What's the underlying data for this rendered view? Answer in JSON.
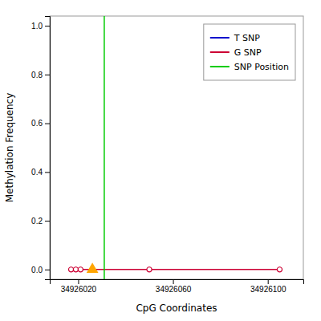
{
  "chart_data": {
    "type": "line",
    "xlabel": "CpG Coordinates",
    "ylabel": "Methylation Frequency",
    "xlim": [
      34926008,
      34926115
    ],
    "ylim": [
      -0.04,
      1.04
    ],
    "xticks": [
      34926020,
      34926060,
      34926100
    ],
    "yticks": [
      {
        "value": 0.0,
        "label": "0.0"
      },
      0.2,
      0.4,
      0.6,
      0.8,
      {
        "value": 1.0,
        "label": "1.0"
      }
    ],
    "grid": false,
    "legend": "upper right",
    "series": [
      {
        "name": "T SNP",
        "type": "line",
        "color": "#0000cc",
        "x": [],
        "values": []
      },
      {
        "name": "G SNP",
        "type": "line",
        "color": "#cc0033",
        "marker": "circle",
        "x": [
          34926017,
          34926019,
          34926021,
          34926050,
          34926105
        ],
        "values": [
          0.0,
          0.0,
          0.0,
          0.0,
          0.0
        ]
      },
      {
        "name": "SNP Position",
        "type": "vline",
        "color": "#00cc00",
        "x": [
          34926031
        ]
      },
      {
        "type": "scatter",
        "marker": "triangle",
        "color": "#FFA500",
        "x": [
          34926026
        ],
        "values": [
          0.0
        ]
      }
    ]
  }
}
